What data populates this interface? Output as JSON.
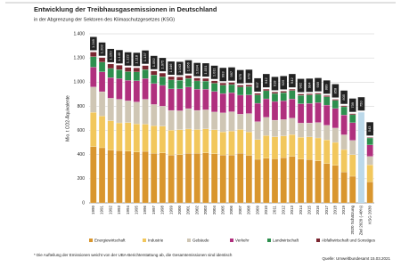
{
  "chart_data": {
    "type": "stacked-bar",
    "title": "Entwicklung der Treibhausgasemissionen in Deutschland",
    "subtitle": "in der Abgrenzung der Sektoren des Klimaschutzgesetzes (KSG)",
    "y_label": "Mio. t CO2-Äquivalente",
    "categories": [
      "1990",
      "1991",
      "1992",
      "1993",
      "1994",
      "1995",
      "1996",
      "1997",
      "1998",
      "1999",
      "2000",
      "2001",
      "2002",
      "2003",
      "2004",
      "2005",
      "2006",
      "2007",
      "2008",
      "2009",
      "2010",
      "2011",
      "2012",
      "2013",
      "2014",
      "2015",
      "2016",
      "2017",
      "2018",
      "2019",
      "2020 Schätzung",
      "Ziel 2020 (-40%)",
      "KSG 2030"
    ],
    "series": [
      {
        "name": "Energiewirtschaft",
        "color": "#d9962e",
        "values": [
          466,
          457,
          438,
          432,
          428,
          421,
          427,
          410,
          414,
          396,
          400,
          411,
          410,
          415,
          407,
          397,
          397,
          412,
          394,
          361,
          370,
          365,
          375,
          386,
          364,
          359,
          349,
          326,
          311,
          255,
          221,
          null,
          175
        ]
      },
      {
        "name": "Industrie",
        "color": "#f2c75c",
        "values": [
          284,
          262,
          243,
          231,
          237,
          232,
          225,
          228,
          222,
          206,
          207,
          201,
          198,
          198,
          199,
          191,
          197,
          196,
          193,
          163,
          187,
          183,
          180,
          180,
          180,
          187,
          189,
          196,
          190,
          187,
          178,
          null,
          140
        ]
      },
      {
        "name": "Gebäude",
        "color": "#cfc6b4",
        "values": [
          210,
          202,
          186,
          195,
          180,
          183,
          206,
          177,
          165,
          164,
          156,
          169,
          158,
          158,
          147,
          158,
          161,
          127,
          153,
          149,
          152,
          137,
          135,
          136,
          117,
          116,
          128,
          121,
          119,
          122,
          119,
          null,
          70
        ]
      },
      {
        "name": "Verkehr",
        "color": "#b0307e",
        "values": [
          164,
          164,
          171,
          171,
          169,
          175,
          172,
          173,
          172,
          178,
          181,
          178,
          175,
          170,
          170,
          160,
          158,
          157,
          154,
          152,
          153,
          155,
          155,
          159,
          160,
          162,
          164,
          167,
          162,
          164,
          146,
          null,
          95
        ]
      },
      {
        "name": "Landwirtschaft",
        "color": "#2e8f4e",
        "values": [
          87,
          80,
          75,
          75,
          73,
          73,
          74,
          72,
          72,
          74,
          72,
          72,
          69,
          68,
          68,
          68,
          67,
          67,
          69,
          68,
          67,
          66,
          68,
          70,
          70,
          70,
          69,
          69,
          67,
          68,
          66,
          null,
          58
        ]
      },
      {
        "name": "Abfallwirtschaft und Sonstiges",
        "color": "#7a2630",
        "values": [
          38,
          38,
          37,
          36,
          35,
          34,
          33,
          32,
          30,
          28,
          27,
          25,
          24,
          22,
          20,
          19,
          17,
          16,
          15,
          14,
          13,
          12,
          12,
          11,
          11,
          10,
          10,
          10,
          9,
          9,
          9,
          null,
          5
        ]
      }
    ],
    "totals": {
      "color": "#222222",
      "target_color": "#bcd9ea",
      "values": [
        1249,
        1203,
        1150,
        1140,
        1122,
        1118,
        1137,
        1092,
        1075,
        1046,
        1043,
        1056,
        1034,
        1031,
        1011,
        993,
        997,
        975,
        978,
        907,
        942,
        918,
        925,
        942,
        902,
        904,
        909,
        889,
        858,
        805,
        739,
        750,
        543
      ],
      "value_labels": [
        "1.249",
        "1.203",
        "1.150",
        "1.140",
        "1.122",
        "1.118",
        "1.137",
        "1.092",
        "1.075",
        "1.046",
        "1.043",
        "1.056",
        "1.034",
        "1.031",
        "1.011",
        "993",
        "997",
        "975",
        "978",
        "907",
        "942",
        "918",
        "925",
        "942",
        "902",
        "904",
        "909",
        "889",
        "858",
        "805",
        "739",
        "750",
        "543"
      ]
    },
    "ylim": [
      0,
      1400
    ],
    "yticks": [
      0,
      200,
      400,
      600,
      800,
      {
        "value": 1000,
        "label": "1.000"
      },
      {
        "value": 1200,
        "label": "1.200"
      },
      {
        "value": 1400,
        "label": "1.400"
      }
    ],
    "grid": true,
    "legend": "bottom",
    "footnote": "* Die Aufteilung der Emissionen weicht von der UBA-Berichterstattung ab, die Gesamtemissionen sind identisch",
    "source": "Quelle: Umweltbundesamt 15.03.2021"
  }
}
